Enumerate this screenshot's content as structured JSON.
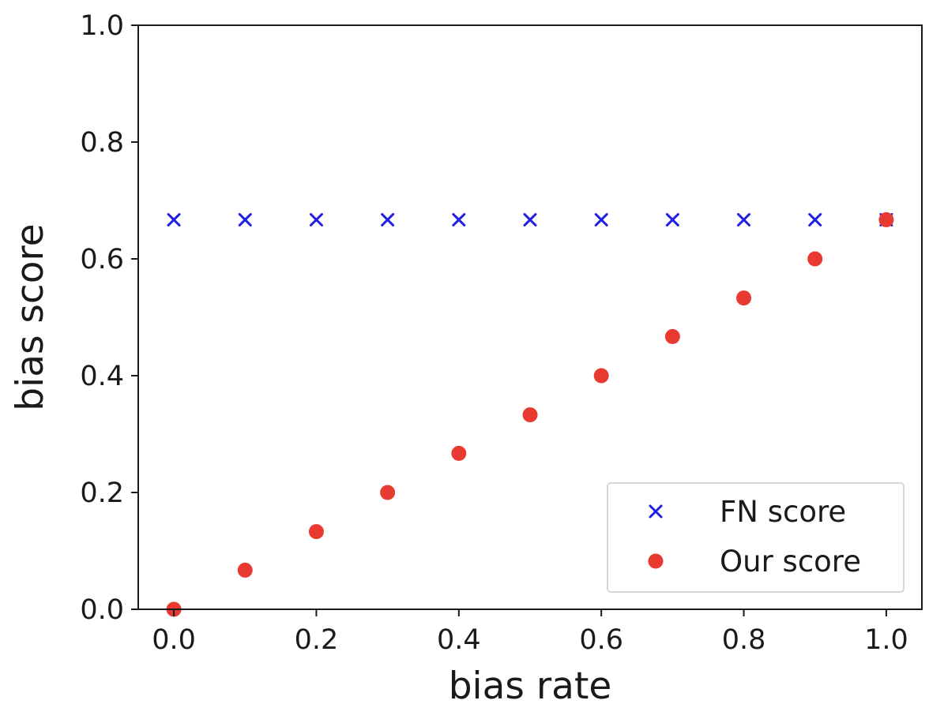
{
  "chart_data": {
    "type": "scatter",
    "xlabel": "bias rate",
    "ylabel": "bias score",
    "xlim": [
      -0.05,
      1.05
    ],
    "ylim": [
      0.0,
      1.0
    ],
    "x_ticks": [
      "0.0",
      "0.2",
      "0.4",
      "0.6",
      "0.8",
      "1.0"
    ],
    "y_ticks": [
      "0.0",
      "0.2",
      "0.4",
      "0.6",
      "0.8",
      "1.0"
    ],
    "x_tick_values": [
      0.0,
      0.2,
      0.4,
      0.6,
      0.8,
      1.0
    ],
    "y_tick_values": [
      0.0,
      0.2,
      0.4,
      0.6,
      0.8,
      1.0
    ],
    "grid": false,
    "legend_position": "lower-right",
    "series": [
      {
        "name": "FN score",
        "marker": "x",
        "color": "#1f1fe6",
        "x": [
          0.0,
          0.1,
          0.2,
          0.3,
          0.4,
          0.5,
          0.6,
          0.7,
          0.8,
          0.9,
          1.0
        ],
        "y": [
          0.667,
          0.667,
          0.667,
          0.667,
          0.667,
          0.667,
          0.667,
          0.667,
          0.667,
          0.667,
          0.667
        ]
      },
      {
        "name": "Our score",
        "marker": "circle",
        "color": "#e83a30",
        "x": [
          0.0,
          0.1,
          0.2,
          0.3,
          0.4,
          0.5,
          0.6,
          0.7,
          0.8,
          0.9,
          1.0
        ],
        "y": [
          0.0,
          0.067,
          0.133,
          0.2,
          0.267,
          0.333,
          0.4,
          0.467,
          0.533,
          0.6,
          0.667
        ]
      }
    ]
  }
}
